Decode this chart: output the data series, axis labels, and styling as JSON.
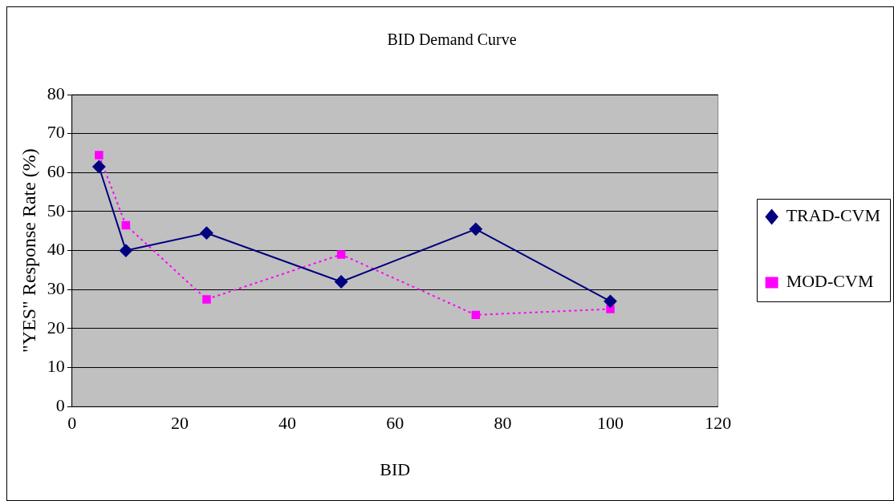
{
  "chart_data": {
    "type": "line",
    "title": "BID Demand Curve",
    "xlabel": "BID",
    "ylabel": "\"YES\" Response Rate (%)",
    "xlim": [
      0,
      120
    ],
    "xticks": [
      0,
      20,
      40,
      60,
      80,
      100,
      120
    ],
    "ylim": [
      0,
      80
    ],
    "yticks": [
      0,
      10,
      20,
      30,
      40,
      50,
      60,
      70,
      80
    ],
    "grid": "y",
    "legend": "right",
    "series": [
      {
        "name": "TRAD-CVM",
        "color": "#000080",
        "x": [
          5,
          10,
          25,
          50,
          75,
          100
        ],
        "values": [
          61.5,
          40,
          44.5,
          32,
          45.5,
          27
        ],
        "marker": "diamond",
        "line_style": "solid"
      },
      {
        "name": "MOD-CVM",
        "color": "#ff00ff",
        "x": [
          5,
          10,
          25,
          50,
          75,
          100
        ],
        "values": [
          64.5,
          46.5,
          27.5,
          39,
          23.5,
          25
        ],
        "marker": "square",
        "line_style": "dotted"
      }
    ]
  }
}
